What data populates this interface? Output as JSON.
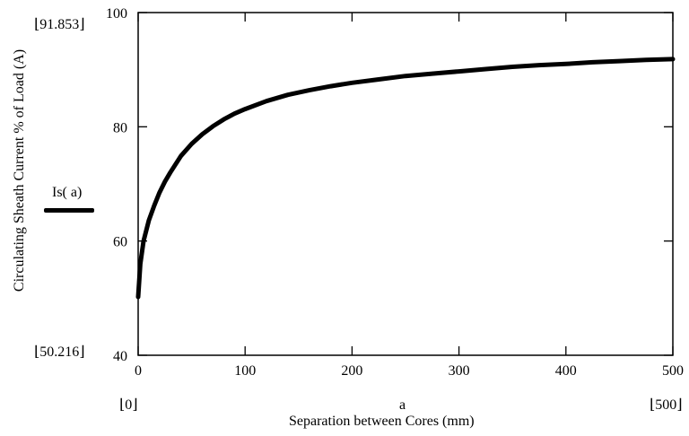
{
  "chart_data": {
    "type": "line",
    "ylabel": "Circulating Sheath Current % of Load (A)",
    "xlabel": "Separation between Cores (mm)",
    "xvar": "a",
    "xlim": [
      0,
      500
    ],
    "ylim": [
      40,
      100
    ],
    "xticks": [
      "0",
      "100",
      "200",
      "300",
      "400",
      "500"
    ],
    "yticks": [
      "100",
      "80",
      "60",
      "40"
    ],
    "trace_ymax": "91.853",
    "trace_ymin": "50.216",
    "trace_xmin": "0",
    "trace_xmax": "500",
    "series": [
      {
        "name": "Is( a)",
        "color": "#000000",
        "x": [
          0,
          2,
          5,
          10,
          15,
          20,
          25,
          30,
          40,
          50,
          60,
          70,
          80,
          90,
          100,
          120,
          140,
          160,
          180,
          200,
          225,
          250,
          275,
          300,
          325,
          350,
          375,
          400,
          425,
          450,
          475,
          500
        ],
        "y": [
          50.216,
          56.0,
          60.0,
          63.6,
          66.2,
          68.5,
          70.4,
          72.0,
          74.9,
          77.0,
          78.7,
          80.1,
          81.3,
          82.3,
          83.1,
          84.5,
          85.6,
          86.4,
          87.1,
          87.7,
          88.3,
          88.9,
          89.3,
          89.7,
          90.1,
          90.5,
          90.8,
          91.0,
          91.3,
          91.5,
          91.7,
          91.853
        ]
      }
    ]
  }
}
